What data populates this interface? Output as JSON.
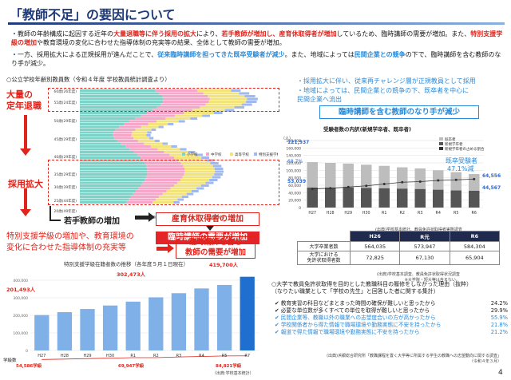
{
  "title": "「教師不足」の要因について",
  "bullets": [
    {
      "parts": [
        {
          "t": "教師の年齢構成に起因する近年の"
        },
        {
          "t": "大量退職等に伴う採用の拡大",
          "c": "red"
        },
        {
          "t": "により、"
        },
        {
          "t": "若手教師が増加し、産育休取得者が増加",
          "c": "red"
        },
        {
          "t": "しているため、臨時講師の需要が増加。また、"
        },
        {
          "t": "特別支援学級の増加",
          "c": "red"
        },
        {
          "t": "や教育環境の変化に合わせた指導体制の充実等の結果、全体として教師の需要が増加。"
        }
      ]
    },
    {
      "parts": [
        {
          "t": "一方、採用拡大による正規採用が進んだことで、"
        },
        {
          "t": "従来臨時講師を担ってきた既卒受験者が減少",
          "c": "blu"
        },
        {
          "t": "。また、地域によっては"
        },
        {
          "t": "民間企業との競争",
          "c": "blu"
        },
        {
          "t": "の下で、臨時講師を含む教師のなり手が減少。"
        }
      ]
    }
  ],
  "age_section": {
    "heading": "○公立学校年齢別教員数（令和４年度 学校教員統計調査より）",
    "age_labels": [
      "60歳(26年度)",
      "55歳(24年度)",
      "50歳(29年度)",
      "45歳(29年度)",
      "40歳(29年度)",
      "35歳(29年度)",
      "30歳(39年度)",
      "25歳(44年度)",
      "20歳(49年度)"
    ],
    "legend": [
      "小学校",
      "中学校",
      "高等学校",
      "特別支援学校"
    ],
    "x_ticks": [
      "0",
      "10,000",
      "20,000"
    ],
    "label_retire": "大量の\n定年退職",
    "label_hire": "採用拡大",
    "label_young": "若手教師の増加",
    "label_leave": "産育休取得者の増加",
    "label_need1": "臨時講師の需要が増加",
    "label_special": "特別支援学級の増加や、教育環境の\n変化に合わせた指導体制の充実等",
    "label_need2": "臨時講師を含む\n教師の需要が増加"
  },
  "right_section": {
    "bullets": [
      "採用拡大に伴い、従来再チャレンジ層が正規教員として採用",
      "地域によっては、民間企業との競争の下、既卒者を中心に\n民間企業へ流出"
    ],
    "summary_box": "臨時講師を含む教師のなり手が減少"
  },
  "chart_data": [
    {
      "type": "bar",
      "title": "受験者数の内訳(新規学卒者、既卒者)",
      "categories": [
        "H27",
        "H28",
        "H29",
        "H30",
        "R1",
        "R2",
        "R3",
        "R4",
        "R5",
        "R6"
      ],
      "series": [
        {
          "name": "既卒者",
          "values": [
            68,
            66,
            64,
            62,
            60,
            57,
            55,
            52,
            49,
            45
          ]
        },
        {
          "name": "新規学卒者",
          "values": [
            54,
            54,
            54,
            53,
            52,
            51,
            50,
            48,
            46,
            45
          ]
        },
        {
          "name": "新規学卒者の占める割合",
          "values": [
            31,
            32,
            34,
            36,
            39,
            42,
            43,
            45,
            46,
            47.1
          ]
        }
      ],
      "labels": [
        "121,937",
        "68.7%",
        "53,039",
        "64,556",
        "44,567",
        "既卒受験者",
        "47.1%減"
      ],
      "y_ticks": [
        "180,000",
        "160,000",
        "140,000",
        "120,000",
        "100,000",
        "80,000",
        "60,000",
        "40,000",
        "20,000",
        "0"
      ],
      "source": "(出典)学校基本統計、教員免許状取得者実態調査"
    },
    {
      "type": "bar",
      "title": "特別支援学級在籍者数の推移（各年度５月１日現在）",
      "categories": [
        "H27",
        "H28",
        "H29",
        "H30",
        "R1",
        "R2",
        "R3",
        "R4",
        "R5",
        "R7"
      ],
      "series": [
        {
          "name": "児童生徒数",
          "values": [
            201493,
            218000,
            236000,
            256000,
            278000,
            302473,
            326000,
            353000,
            373000,
            419700
          ]
        },
        {
          "name": "学級数",
          "values": [
            54586,
            58000,
            62000,
            66000,
            70000,
            69947,
            76000,
            80000,
            84000,
            84821
          ]
        }
      ],
      "labels": [
        "201,493人",
        "302,473人",
        "419,700人",
        "54,586学級",
        "69,947学級",
        "84,821学級"
      ],
      "y_ticks": [
        "400,000",
        "300,000",
        "200,000",
        "100,000",
        "0"
      ],
      "unit_left": "学級数",
      "source": "（出典:学校基本統計）"
    }
  ],
  "table": {
    "headers": [
      "",
      "H26",
      "R元",
      "R6"
    ],
    "rows": [
      [
        "大学卒業者数",
        "564,035",
        "573,947",
        "584,304"
      ],
      [
        "大学における\n免許状取得者数",
        "72,825",
        "67,130",
        "65,904"
      ]
    ],
    "note": "(出典)学校基本調査、教員免許状取得状況調査\n※大学院・短大等は含まない。"
  },
  "survey": {
    "heading": "○大学で教員免許状取得を目的とした教職科目の履修をしなかった理由（抜粋）\n（なりたい職業として「学校の先生」と回答した者に関する集計）",
    "items": [
      {
        "text": "✔ 教育実習の科目などまとまった時間の確保が難しいと思ったから",
        "pct": "24.2%",
        "c": "dark"
      },
      {
        "text": "✔ 必要な単位数が多くすべての単位を取得が難しいと思ったから",
        "pct": "29.9%",
        "c": "dark"
      },
      {
        "text": "✔ 民間企業等、教職以外の職業への志望度合いの方が高かったから",
        "pct": "55.9%",
        "c": "blu"
      },
      {
        "text": "✔ 学校関係者から得た情報で職場環境や勤務実態に不安を持ったから",
        "pct": "21.8%",
        "c": "blu"
      },
      {
        "text": "✔ 報道で得た情報で職場環境や勤務実態に不安を持ったから",
        "pct": "21.2%",
        "c": "blu"
      }
    ],
    "source": "(出典)浜銀総合研究所「教職課程を置く大学等に所属する学生の教職への志望動向に関する調査」\n（令和４年３月）"
  },
  "page_number": "4"
}
